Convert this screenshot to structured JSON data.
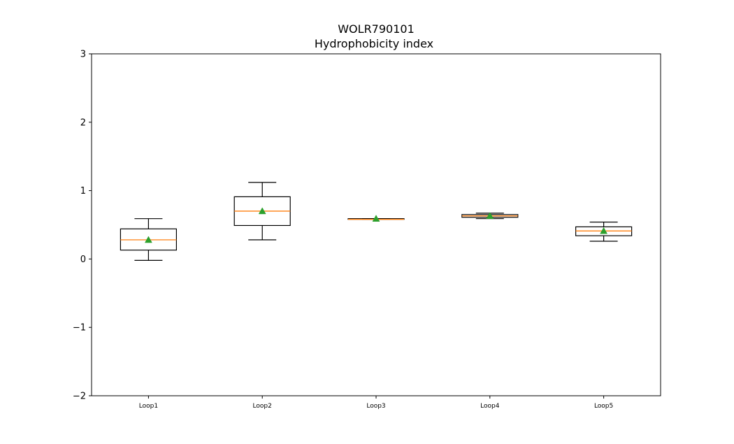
{
  "chart_data": {
    "type": "box",
    "title": "WOLR790101",
    "subtitle": "Hydrophobicity index",
    "xlabel": "",
    "ylabel": "",
    "ylim": [
      -2,
      3
    ],
    "yticks": [
      -2,
      -1,
      0,
      1,
      2,
      3
    ],
    "ytick_labels": [
      "−2",
      "−1",
      "0",
      "1",
      "2",
      "3"
    ],
    "grid": false,
    "categories": [
      "Loop1",
      "Loop2",
      "Loop3",
      "Loop4",
      "Loop5"
    ],
    "boxes": [
      {
        "label": "Loop1",
        "whisker_low": -0.02,
        "q1": 0.13,
        "median": 0.28,
        "q3": 0.44,
        "whisker_high": 0.59,
        "mean": 0.28
      },
      {
        "label": "Loop2",
        "whisker_low": 0.28,
        "q1": 0.49,
        "median": 0.7,
        "q3": 0.91,
        "whisker_high": 1.12,
        "mean": 0.7
      },
      {
        "label": "Loop3",
        "whisker_low": 0.58,
        "q1": 0.58,
        "median": 0.58,
        "q3": 0.59,
        "whisker_high": 0.59,
        "mean": 0.59
      },
      {
        "label": "Loop4",
        "whisker_low": 0.59,
        "q1": 0.61,
        "median": 0.63,
        "q3": 0.65,
        "whisker_high": 0.67,
        "mean": 0.63
      },
      {
        "label": "Loop5",
        "whisker_low": 0.26,
        "q1": 0.34,
        "median": 0.41,
        "q3": 0.47,
        "whisker_high": 0.54,
        "mean": 0.41
      }
    ],
    "colors": {
      "box": "#000000",
      "median": "#ff7f0e",
      "mean": "#2ca02c"
    }
  }
}
